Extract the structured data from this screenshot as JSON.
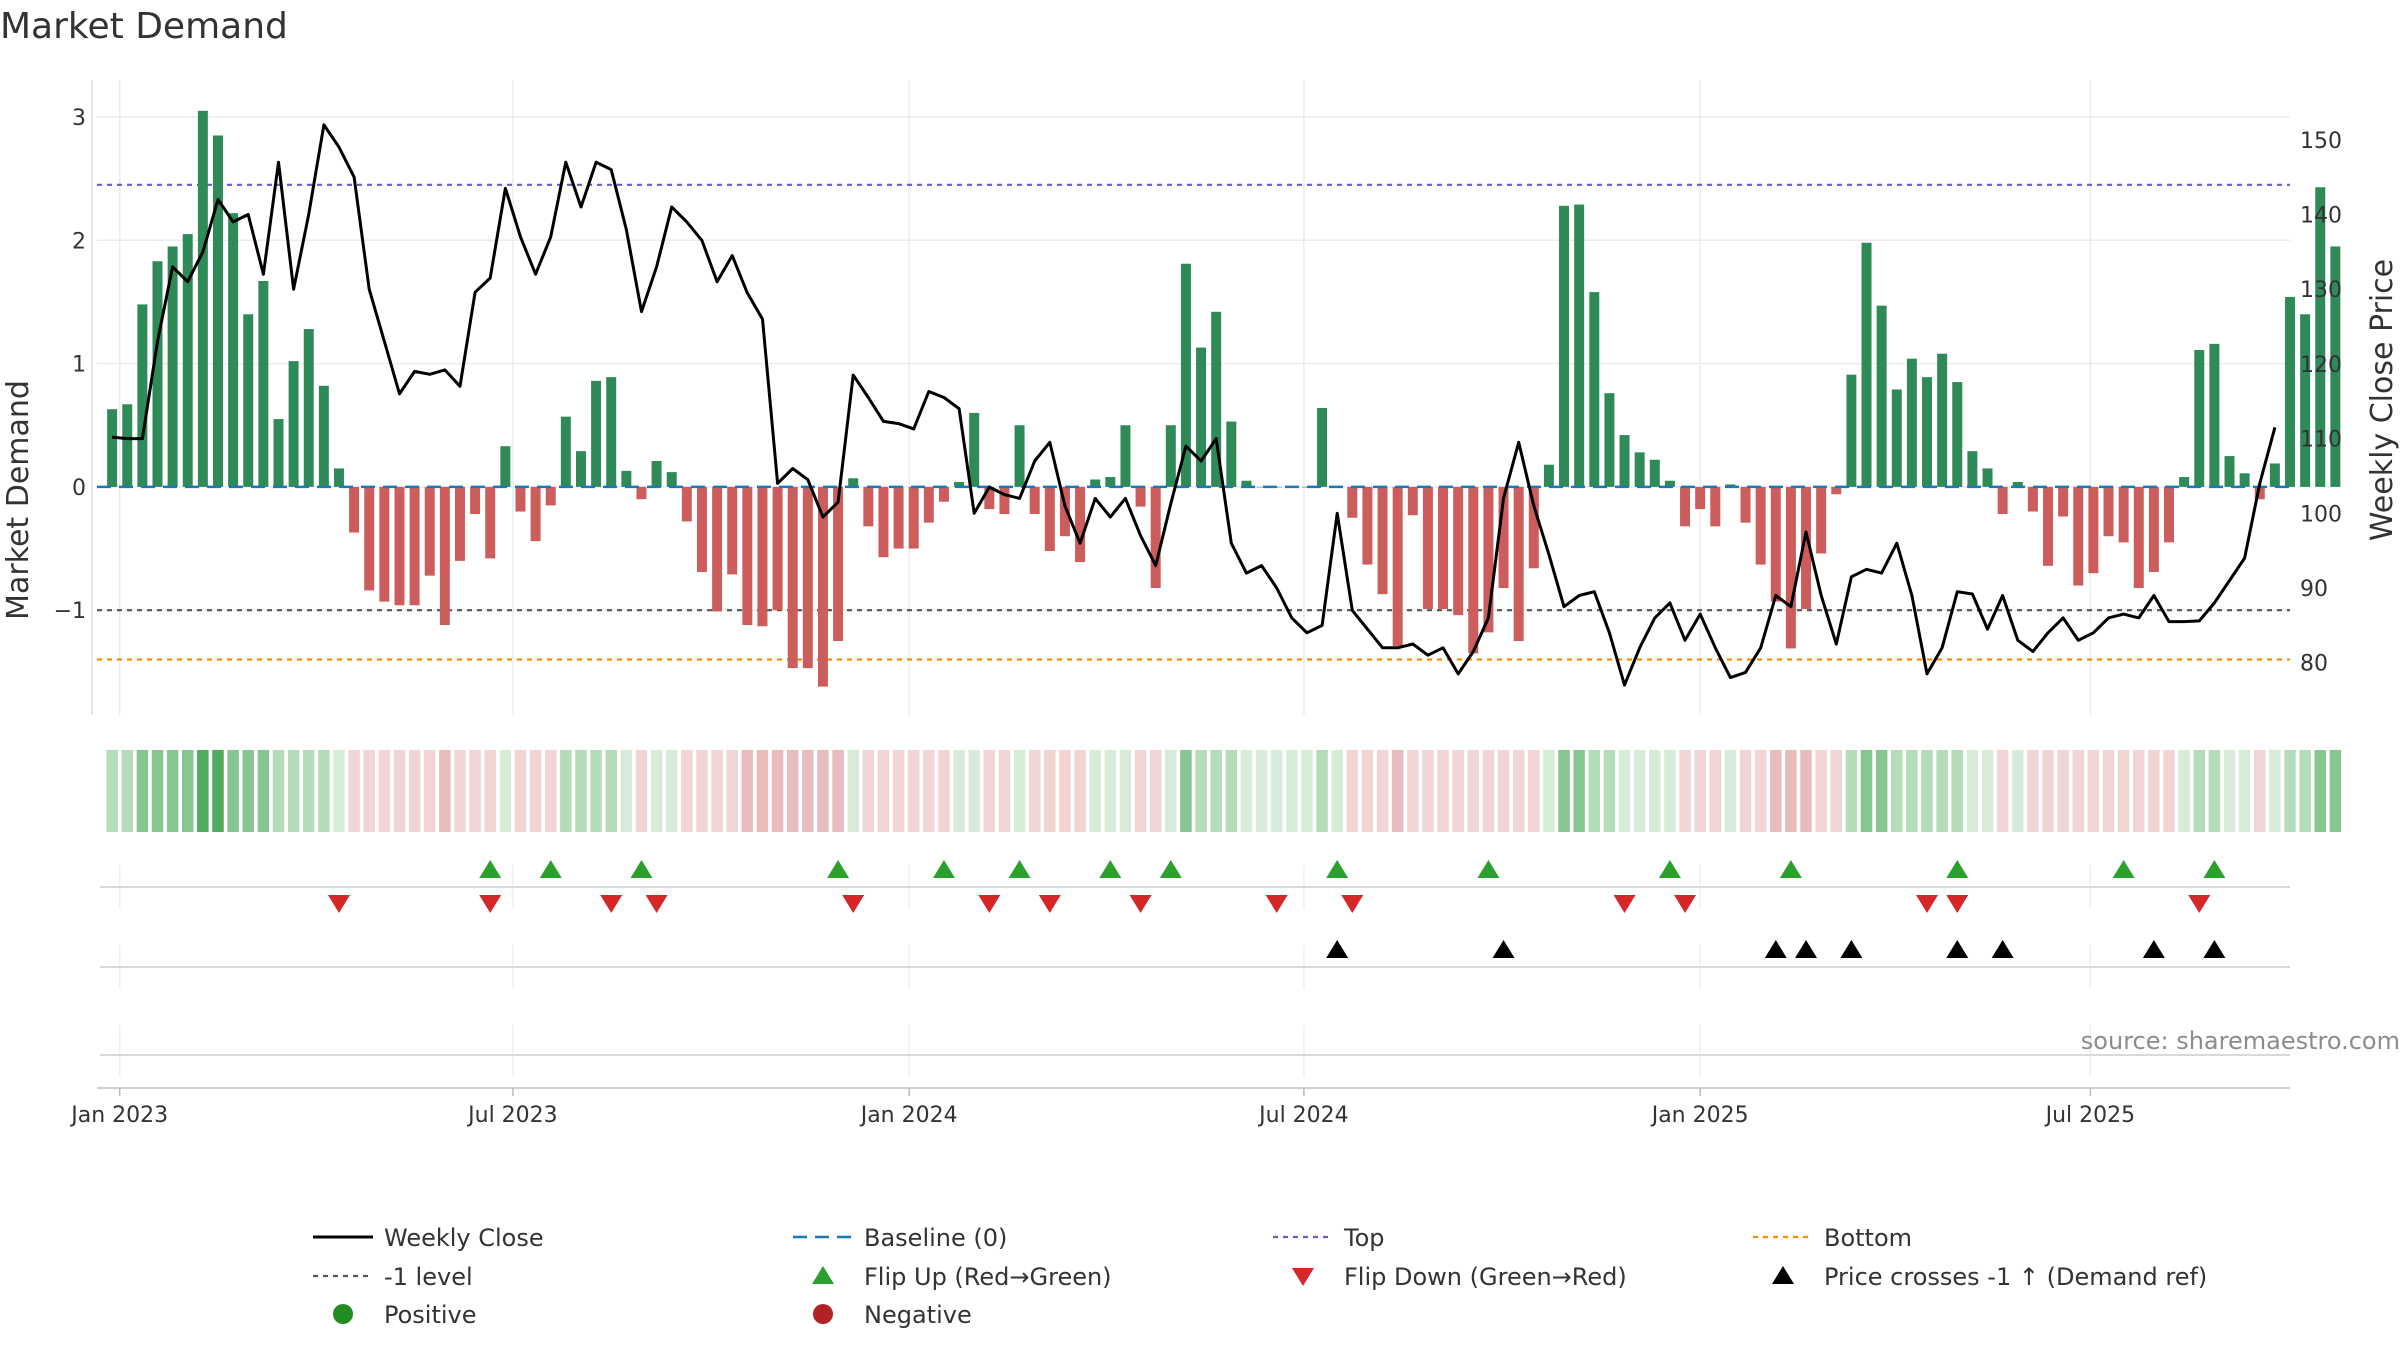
{
  "chart_data": {
    "type": "bar",
    "title": "Market Demand",
    "ylabel_left": "Market Demand",
    "ylabel_right": "Weekly Close Price",
    "source": "source: sharemaestro.com",
    "colors": {
      "positive": "#2e8b57",
      "negative": "#cd5c5c",
      "price": "#000000",
      "baseline": "#1f77b4",
      "top": "#6a5acd",
      "minus_one": "#555555",
      "bottom": "#ff8c00",
      "flip_up": "#2ca02c",
      "flip_down": "#d62728",
      "cross": "#000000",
      "legend_positive": "#228b22",
      "legend_negative": "#b22222"
    },
    "left_axis": {
      "ylim": [
        -1.85,
        3.3
      ],
      "ticks": [
        3,
        2,
        1,
        0,
        -1
      ],
      "tick_labels": [
        "3",
        "2",
        "1",
        "0",
        "−1"
      ]
    },
    "right_axis": {
      "ylim": [
        73,
        158
      ],
      "ticks": [
        150,
        140,
        130,
        120,
        110,
        100,
        90,
        80
      ],
      "tick_labels": [
        "150",
        "140",
        "130",
        "120",
        "110",
        "100",
        "90",
        "80"
      ]
    },
    "reference_lines": {
      "top": 2.45,
      "minus_one": -1.0,
      "bottom": -1.4,
      "baseline": 0
    },
    "x_axis": {
      "start_week": -1,
      "end_week": 144,
      "ticks": [
        {
          "week": 0.5,
          "label": "Jan 2023"
        },
        {
          "week": 26.5,
          "label": "Jul 2023"
        },
        {
          "week": 52.7,
          "label": "Jan 2024"
        },
        {
          "week": 78.8,
          "label": "Jul 2024"
        },
        {
          "week": 105,
          "label": "Jan 2025"
        },
        {
          "week": 130.8,
          "label": "Jul 2025"
        }
      ]
    },
    "demand": [
      0.63,
      0.67,
      1.48,
      1.83,
      1.95,
      2.05,
      3.05,
      2.85,
      2.22,
      1.4,
      1.67,
      0.55,
      1.02,
      1.28,
      0.82,
      0.15,
      -0.37,
      -0.84,
      -0.93,
      -0.96,
      -0.96,
      -0.72,
      -1.12,
      -0.6,
      -0.22,
      -0.58,
      0.33,
      -0.2,
      -0.44,
      -0.15,
      0.57,
      0.29,
      0.86,
      0.89,
      0.13,
      -0.1,
      0.21,
      0.12,
      -0.28,
      -0.69,
      -1.01,
      -0.71,
      -1.12,
      -1.13,
      -1.0,
      -1.47,
      -1.47,
      -1.62,
      -1.25,
      0.07,
      -0.32,
      -0.57,
      -0.5,
      -0.5,
      -0.29,
      -0.12,
      0.04,
      0.6,
      -0.18,
      -0.22,
      0.5,
      -0.22,
      -0.52,
      -0.4,
      -0.61,
      0.06,
      0.08,
      0.5,
      -0.16,
      -0.82,
      0.5,
      1.81,
      1.13,
      1.42,
      0.53,
      0.05,
      0.0,
      0.0,
      0.0,
      0.0,
      0.64,
      0.0,
      -0.25,
      -0.63,
      -0.87,
      -1.29,
      -0.23,
      -0.99,
      -0.99,
      -1.04,
      -1.35,
      -1.18,
      -0.82,
      -1.25,
      -0.66,
      0.18,
      2.28,
      2.29,
      1.58,
      0.76,
      0.42,
      0.28,
      0.22,
      0.05,
      -0.32,
      -0.18,
      -0.32,
      0.02,
      -0.29,
      -0.63,
      -0.93,
      -1.31,
      -0.99,
      -0.54,
      -0.06,
      0.91,
      1.98,
      1.47,
      0.79,
      1.04,
      0.89,
      1.08,
      0.85,
      0.29,
      0.15,
      -0.22,
      0.04,
      -0.2,
      -0.64,
      -0.24,
      -0.8,
      -0.7,
      -0.4,
      -0.45,
      -0.82,
      -0.69,
      -0.45,
      0.08,
      1.11,
      1.16,
      0.25,
      0.11,
      -0.1,
      0.19,
      1.54,
      1.4,
      2.43,
      1.95
    ],
    "price": [
      110.2,
      110,
      110,
      123,
      133,
      131,
      135,
      142,
      139,
      140,
      132,
      147,
      130,
      140,
      152,
      149,
      145,
      130,
      123,
      116,
      119,
      118.6,
      119.2,
      117,
      129.6,
      131.5,
      143.5,
      137,
      132,
      137,
      147,
      141,
      147,
      146,
      138,
      127,
      133,
      141,
      139,
      136.5,
      131,
      134.5,
      129.5,
      126,
      104,
      106,
      104.5,
      99.5,
      101.5,
      118.5,
      115.5,
      112.3,
      112,
      111.3,
      116.3,
      115.5,
      114,
      100,
      103.5,
      102.5,
      102,
      107,
      109.5,
      101,
      96,
      102,
      99.5,
      102,
      97,
      93,
      101.3,
      109,
      107,
      110,
      96,
      92,
      93,
      90,
      86,
      84,
      85,
      100,
      87,
      84.5,
      82,
      82,
      82.5,
      81,
      82,
      78.5,
      81.5,
      86,
      102,
      109.5,
      101,
      94.5,
      87.5,
      89,
      89.5,
      84,
      77,
      82,
      86,
      88,
      83,
      86.5,
      82,
      78,
      78.7,
      82,
      89,
      87.5,
      97.5,
      89,
      82.5,
      91.5,
      92.5,
      92,
      96,
      89,
      78.5,
      82,
      89.5,
      89.2,
      84.5,
      89,
      83,
      81.5,
      84,
      86,
      83,
      84,
      86,
      86.5,
      86,
      89,
      85.5,
      85.5,
      85.6,
      88,
      91,
      94,
      104,
      111.5
    ],
    "heat_strip": {
      "levels": [
        2,
        2,
        3,
        3,
        3,
        3,
        4,
        4,
        3,
        3,
        3,
        2,
        2,
        2,
        2,
        1,
        1,
        1,
        1,
        1,
        1,
        1,
        2,
        1,
        1,
        1,
        1,
        1,
        1,
        1,
        2,
        2,
        2,
        2,
        1,
        1,
        1,
        1,
        1,
        1,
        1,
        1,
        2,
        2,
        2,
        2,
        2,
        2,
        2,
        1,
        1,
        1,
        1,
        1,
        1,
        1,
        1,
        1,
        1,
        1,
        1,
        1,
        1,
        1,
        1,
        1,
        1,
        1,
        1,
        1,
        1,
        3,
        2,
        2,
        2,
        1,
        1,
        1,
        1,
        1,
        2,
        1,
        1,
        1,
        1,
        2,
        1,
        1,
        1,
        1,
        1,
        1,
        1,
        1,
        1,
        1,
        3,
        3,
        2,
        2,
        1,
        1,
        1,
        1,
        1,
        1,
        1,
        1,
        1,
        1,
        2,
        2,
        2,
        1,
        1,
        2,
        3,
        3,
        2,
        2,
        2,
        2,
        2,
        1,
        1,
        1,
        1,
        1,
        1,
        1,
        1,
        1,
        1,
        1,
        1,
        1,
        1,
        1,
        2,
        2,
        1,
        1,
        1,
        1,
        2,
        2,
        3,
        3
      ],
      "palette_pos": [
        "#d7ecd8",
        "#b4dcb8",
        "#87c691",
        "#4fab5d"
      ],
      "palette_neg": [
        "#f2d4d4",
        "#e8bcbc",
        "#e0a7a7",
        "#d79595"
      ]
    },
    "flip_up_weeks": [
      25,
      29,
      35,
      48,
      55,
      60,
      66,
      70,
      81,
      91,
      103,
      111,
      122,
      133,
      139
    ],
    "flip_down_weeks": [
      15,
      25,
      33,
      36,
      49,
      58,
      62,
      68,
      77,
      82,
      100,
      104,
      120,
      122,
      138
    ],
    "cross_weeks": [
      81,
      92,
      110,
      112,
      115,
      122,
      125,
      135,
      139
    ]
  },
  "legend": [
    {
      "label": "Weekly Close",
      "icon": "line-solid"
    },
    {
      "label": "Baseline (0)",
      "icon": "line-dashed"
    },
    {
      "label": "Top",
      "icon": "line-dotted-purple"
    },
    {
      "label": "Bottom",
      "icon": "line-dotted-orange"
    },
    {
      "label": "-1 level",
      "icon": "line-dotted-gray"
    },
    {
      "label": "Flip Up (Red→Green)",
      "icon": "triangle-up-green"
    },
    {
      "label": "Flip Down (Green→Red)",
      "icon": "triangle-down-red"
    },
    {
      "label": "Price crosses -1 ↑ (Demand ref)",
      "icon": "triangle-up-black"
    },
    {
      "label": "Positive",
      "icon": "circle-green"
    },
    {
      "label": "Negative",
      "icon": "circle-red"
    }
  ]
}
